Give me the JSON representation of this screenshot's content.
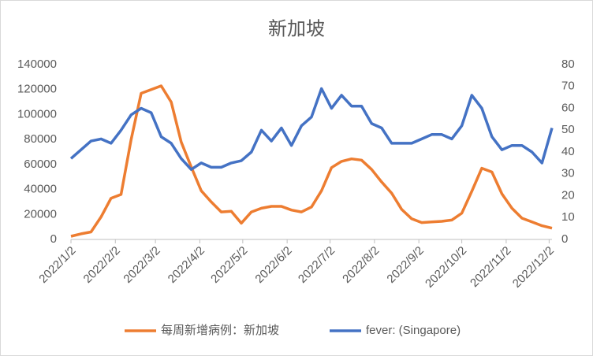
{
  "chart_data": {
    "type": "line",
    "title": "新加坡",
    "x": [
      "2022/1/2",
      "2022/1/9",
      "2022/1/16",
      "2022/1/23",
      "2022/1/30",
      "2022/2/6",
      "2022/2/13",
      "2022/2/20",
      "2022/2/27",
      "2022/3/6",
      "2022/3/13",
      "2022/3/20",
      "2022/3/27",
      "2022/4/3",
      "2022/4/10",
      "2022/4/17",
      "2022/4/24",
      "2022/5/1",
      "2022/5/8",
      "2022/5/15",
      "2022/5/22",
      "2022/5/29",
      "2022/6/5",
      "2022/6/12",
      "2022/6/19",
      "2022/6/26",
      "2022/7/3",
      "2022/7/10",
      "2022/7/17",
      "2022/7/24",
      "2022/7/31",
      "2022/8/7",
      "2022/8/14",
      "2022/8/21",
      "2022/8/28",
      "2022/9/4",
      "2022/9/11",
      "2022/9/18",
      "2022/9/25",
      "2022/10/2",
      "2022/10/9",
      "2022/10/16",
      "2022/10/23",
      "2022/10/30",
      "2022/11/6",
      "2022/11/13",
      "2022/11/20",
      "2022/11/27",
      "2022/12/4"
    ],
    "series": [
      {
        "name": "每周新增病例：新加坡",
        "color": "#ed7d31",
        "axis": "y",
        "values": [
          2500,
          4500,
          6000,
          18000,
          33000,
          36000,
          80000,
          117000,
          120000,
          123000,
          110000,
          78000,
          58000,
          39000,
          30000,
          22000,
          22500,
          13000,
          22000,
          25000,
          26500,
          26500,
          23500,
          22000,
          26000,
          39000,
          57500,
          62500,
          64500,
          63500,
          56000,
          46000,
          37000,
          24000,
          16500,
          13500,
          14000,
          14500,
          15500,
          21000,
          38500,
          57000,
          54000,
          36500,
          25000,
          17000,
          14000,
          11000,
          9000
        ]
      },
      {
        "name": "fever: (Singapore)",
        "color": "#4472c4",
        "axis": "y2",
        "values": [
          37,
          41,
          45,
          46,
          44,
          50,
          57,
          60,
          58,
          47,
          44,
          37,
          32,
          35,
          33,
          33,
          35,
          36,
          40,
          50,
          45,
          51,
          43,
          52,
          56,
          69,
          60,
          66,
          61,
          61,
          53,
          51,
          44,
          44,
          44,
          46,
          48,
          48,
          46,
          52,
          66,
          60,
          47,
          41,
          43,
          43,
          40,
          35,
          51
        ]
      }
    ],
    "xlim": [
      "2022/1/2",
      "2022/12/4"
    ],
    "xticks": [
      "2022/1/2",
      "2022/2/2",
      "2022/3/2",
      "2022/4/2",
      "2022/5/2",
      "2022/6/2",
      "2022/7/2",
      "2022/8/2",
      "2022/9/2",
      "2022/10/2",
      "2022/11/2",
      "2022/12/2"
    ],
    "ylim": [
      0,
      140000
    ],
    "yticks": [
      0,
      20000,
      40000,
      60000,
      80000,
      100000,
      120000,
      140000
    ],
    "y2lim": [
      0,
      80
    ],
    "y2ticks": [
      0,
      10,
      20,
      30,
      40,
      50,
      60,
      70,
      80
    ],
    "grid": false,
    "legend": "bottom"
  }
}
